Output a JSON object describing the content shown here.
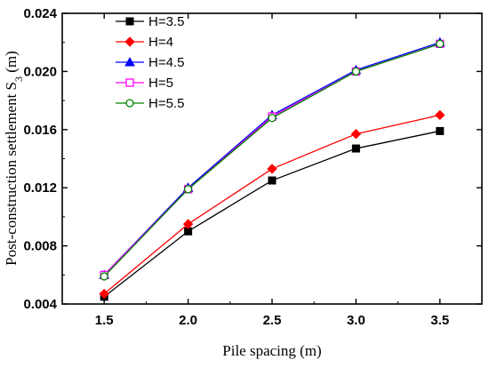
{
  "chart_data": {
    "type": "line",
    "xlabel": "Pile spacing (m)",
    "ylabel_main": "Post-construction settlement S",
    "ylabel_sub": "3",
    "ylabel_unit": " (m)",
    "x": [
      1.5,
      2.0,
      2.5,
      3.0,
      3.5
    ],
    "xticks": [
      "1.5",
      "2.0",
      "2.5",
      "3.0",
      "3.5"
    ],
    "xlim": [
      1.25,
      3.75
    ],
    "ylim": [
      0.004,
      0.024
    ],
    "yticks": [
      "0.004",
      "0.008",
      "0.012",
      "0.016",
      "0.020",
      "0.024"
    ],
    "ytick_values": [
      0.004,
      0.008,
      0.012,
      0.016,
      0.02,
      0.024
    ],
    "grid": false,
    "legend_position": "top-left",
    "series": [
      {
        "name": "H=3.5",
        "color": "#000000",
        "marker": "square-filled",
        "values": [
          0.0045,
          0.009,
          0.0125,
          0.0147,
          0.0159
        ]
      },
      {
        "name": "H=4",
        "color": "#ff0000",
        "marker": "diamond-filled",
        "values": [
          0.0047,
          0.0095,
          0.0133,
          0.0157,
          0.017
        ]
      },
      {
        "name": "H=4.5",
        "color": "#0000ff",
        "marker": "triangle-filled",
        "values": [
          0.006,
          0.012,
          0.017,
          0.0201,
          0.022
        ]
      },
      {
        "name": "H=5",
        "color": "#ff00ff",
        "marker": "square-open",
        "values": [
          0.006,
          0.0119,
          0.0169,
          0.02,
          0.0219
        ]
      },
      {
        "name": "H=5.5",
        "color": "#008000",
        "marker": "circle-open",
        "values": [
          0.0059,
          0.0119,
          0.0168,
          0.02,
          0.0219
        ]
      }
    ]
  }
}
